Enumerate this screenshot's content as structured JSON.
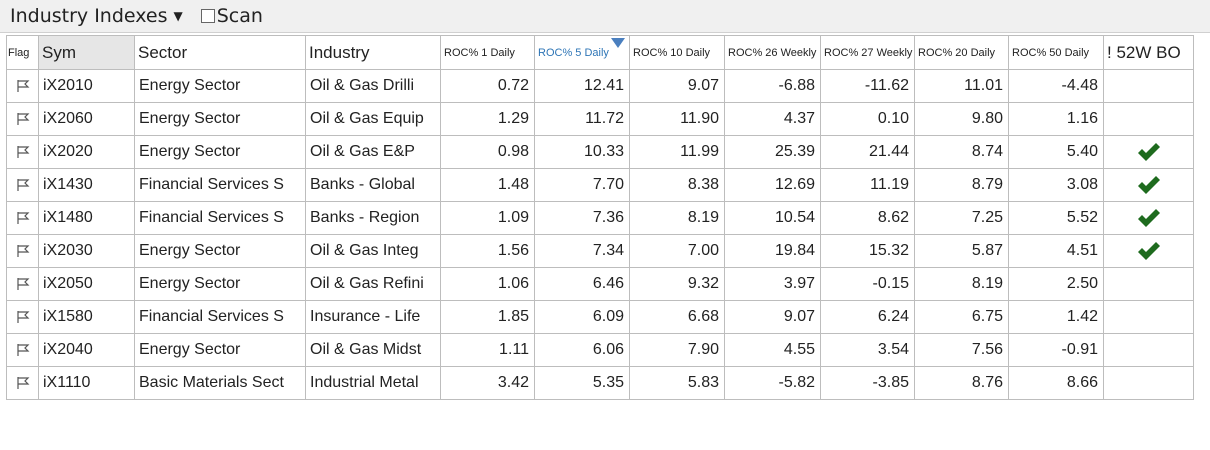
{
  "toolbar": {
    "title": "Industry Indexes",
    "scan_label": "Scan"
  },
  "columns": {
    "flag": "Flag",
    "sym": "Sym",
    "sector": "Sector",
    "industry": "Industry",
    "roc1": "ROC% 1 Daily",
    "roc5": "ROC% 5 Daily",
    "roc10": "ROC% 10 Daily",
    "roc26w": "ROC% 26 Weekly",
    "roc27w": "ROC% 27 Weekly",
    "roc20": "ROC% 20 Daily",
    "roc50": "ROC% 50 Daily",
    "bo52": "! 52W BO"
  },
  "rows": [
    {
      "sym": "iX2010",
      "sector": "Energy Sector",
      "industry": "Oil & Gas Drilli",
      "roc1": "0.72",
      "roc5": "12.41",
      "roc10": "9.07",
      "roc26w": "-6.88",
      "roc27w": "-11.62",
      "roc20": "11.01",
      "roc50": "-4.48",
      "bo": false
    },
    {
      "sym": "iX2060",
      "sector": "Energy Sector",
      "industry": "Oil & Gas Equip",
      "roc1": "1.29",
      "roc5": "11.72",
      "roc10": "11.90",
      "roc26w": "4.37",
      "roc27w": "0.10",
      "roc20": "9.80",
      "roc50": "1.16",
      "bo": false
    },
    {
      "sym": "iX2020",
      "sector": "Energy Sector",
      "industry": "Oil & Gas E&P",
      "roc1": "0.98",
      "roc5": "10.33",
      "roc10": "11.99",
      "roc26w": "25.39",
      "roc27w": "21.44",
      "roc20": "8.74",
      "roc50": "5.40",
      "bo": true
    },
    {
      "sym": "iX1430",
      "sector": "Financial Services S",
      "industry": "Banks - Global",
      "roc1": "1.48",
      "roc5": "7.70",
      "roc10": "8.38",
      "roc26w": "12.69",
      "roc27w": "11.19",
      "roc20": "8.79",
      "roc50": "3.08",
      "bo": true
    },
    {
      "sym": "iX1480",
      "sector": "Financial Services S",
      "industry": "Banks - Region",
      "roc1": "1.09",
      "roc5": "7.36",
      "roc10": "8.19",
      "roc26w": "10.54",
      "roc27w": "8.62",
      "roc20": "7.25",
      "roc50": "5.52",
      "bo": true
    },
    {
      "sym": "iX2030",
      "sector": "Energy Sector",
      "industry": "Oil & Gas Integ",
      "roc1": "1.56",
      "roc5": "7.34",
      "roc10": "7.00",
      "roc26w": "19.84",
      "roc27w": "15.32",
      "roc20": "5.87",
      "roc50": "4.51",
      "bo": true
    },
    {
      "sym": "iX2050",
      "sector": "Energy Sector",
      "industry": "Oil & Gas Refini",
      "roc1": "1.06",
      "roc5": "6.46",
      "roc10": "9.32",
      "roc26w": "3.97",
      "roc27w": "-0.15",
      "roc20": "8.19",
      "roc50": "2.50",
      "bo": false
    },
    {
      "sym": "iX1580",
      "sector": "Financial Services S",
      "industry": "Insurance - Life",
      "roc1": "1.85",
      "roc5": "6.09",
      "roc10": "6.68",
      "roc26w": "9.07",
      "roc27w": "6.24",
      "roc20": "6.75",
      "roc50": "1.42",
      "bo": false
    },
    {
      "sym": "iX2040",
      "sector": "Energy Sector",
      "industry": "Oil & Gas Midst",
      "roc1": "1.11",
      "roc5": "6.06",
      "roc10": "7.90",
      "roc26w": "4.55",
      "roc27w": "3.54",
      "roc20": "7.56",
      "roc50": "-0.91",
      "bo": false
    },
    {
      "sym": "iX1110",
      "sector": "Basic Materials Sect",
      "industry": "Industrial Metal",
      "roc1": "3.42",
      "roc5": "5.35",
      "roc10": "5.83",
      "roc26w": "-5.82",
      "roc27w": "-3.85",
      "roc20": "8.76",
      "roc50": "8.66",
      "bo": false
    }
  ],
  "icons": {
    "flag": "flag-outline-icon",
    "check": "checkmark-icon",
    "sort": "sort-descending-icon",
    "dropdown": "caret-down-icon"
  },
  "colors": {
    "check": "#1e6b1e",
    "sorted_header": "#2e75b6"
  }
}
